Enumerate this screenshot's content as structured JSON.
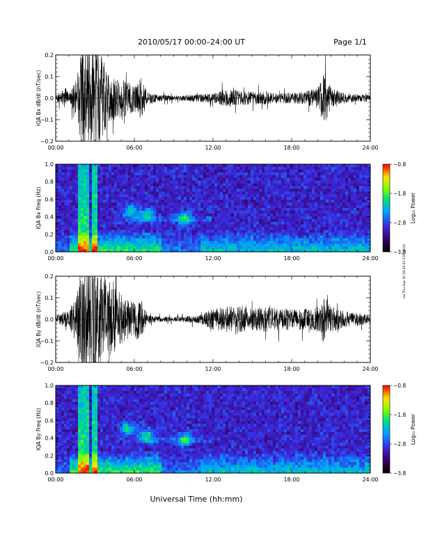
{
  "header": {
    "title": "2010/05/17  00:00–24:00 UT",
    "page": "Page 1/1"
  },
  "side_note": "zal Thu Sep 30 09:45:42 CDT 2010",
  "xlabel": "Universal Time (hh:mm)",
  "chart_data": [
    {
      "type": "line",
      "ylabel": "IQA Bx dB/dt (nT/sec)",
      "xticks": [
        "00:00",
        "06:00",
        "12:00",
        "18:00",
        "24:00"
      ],
      "yticks": [
        "0.2",
        "0.1",
        "0.0",
        "−0.1",
        "−0.2"
      ],
      "ylim": [
        -0.2,
        0.2
      ],
      "xlim": [
        0,
        24
      ],
      "series": [
        {
          "envelope_hours": [
            0,
            0.8,
            1.0,
            1.3,
            1.6,
            2.0,
            2.5,
            3.0,
            3.5,
            4.0,
            4.5,
            5.0,
            5.5,
            6.0,
            6.5,
            7.0,
            8.0,
            9.0,
            10.0,
            11.0,
            12.0,
            13.0,
            14.0,
            15.0,
            16.0,
            17.0,
            18.0,
            19.0,
            20.0,
            20.5,
            21.0,
            22.0,
            23.0,
            24.0
          ],
          "amplitude": [
            0.012,
            0.05,
            0.02,
            0.05,
            0.1,
            0.25,
            0.25,
            0.25,
            0.2,
            0.12,
            0.1,
            0.09,
            0.08,
            0.06,
            0.1,
            0.03,
            0.015,
            0.012,
            0.015,
            0.02,
            0.02,
            0.04,
            0.035,
            0.03,
            0.03,
            0.025,
            0.025,
            0.03,
            0.05,
            0.12,
            0.05,
            0.025,
            0.018,
            0.015
          ]
        }
      ]
    },
    {
      "type": "heatmap",
      "ylabel": "IQA Bx Freq (Hz)",
      "xticks": [
        "00:00",
        "06:00",
        "12:00",
        "18:00",
        "24:00"
      ],
      "yticks": [
        "1.0",
        "0.8",
        "0.6",
        "0.4",
        "0.2",
        "0.0"
      ],
      "ylim": [
        0,
        1
      ],
      "xlim": [
        0,
        24
      ],
      "colorbar": {
        "label": "Log₁₀ Power",
        "ticks": [
          "−0.8",
          "−1.8",
          "−2.8",
          "−3.8"
        ],
        "range": [
          -3.8,
          -0.8
        ]
      },
      "features": {
        "broadband_hours": [
          2.0,
          2.3,
          2.9
        ],
        "pulsation_bands": [
          {
            "hour": 5.7,
            "freq": 0.45
          },
          {
            "hour": 7.0,
            "freq": 0.42
          },
          {
            "hour": 9.8,
            "freq": 0.38
          }
        ]
      }
    },
    {
      "type": "line",
      "ylabel": "IQA By dB/dt (nT/sec)",
      "xticks": [
        "00:00",
        "06:00",
        "12:00",
        "18:00",
        "24:00"
      ],
      "yticks": [
        "0.2",
        "0.1",
        "0.0",
        "−0.1",
        "−0.2"
      ],
      "ylim": [
        -0.2,
        0.2
      ],
      "xlim": [
        0,
        24
      ],
      "series": [
        {
          "envelope_hours": [
            0,
            0.8,
            1.0,
            1.3,
            1.6,
            2.0,
            2.5,
            3.0,
            3.5,
            4.0,
            4.5,
            5.0,
            5.5,
            6.0,
            6.5,
            7.0,
            8.0,
            9.0,
            10.0,
            11.0,
            12.0,
            13.0,
            14.0,
            15.0,
            16.0,
            17.0,
            18.0,
            19.0,
            20.0,
            20.5,
            21.0,
            22.0,
            23.0,
            24.0
          ],
          "amplitude": [
            0.015,
            0.04,
            0.03,
            0.08,
            0.12,
            0.25,
            0.25,
            0.25,
            0.22,
            0.18,
            0.15,
            0.12,
            0.1,
            0.09,
            0.1,
            0.02,
            0.012,
            0.012,
            0.015,
            0.02,
            0.05,
            0.06,
            0.06,
            0.05,
            0.06,
            0.05,
            0.05,
            0.05,
            0.06,
            0.12,
            0.06,
            0.04,
            0.03,
            0.02
          ]
        }
      ]
    },
    {
      "type": "heatmap",
      "ylabel": "IQA By Freq (Hz)",
      "xticks": [
        "00:00",
        "06:00",
        "12:00",
        "18:00",
        "24:00"
      ],
      "yticks": [
        "1.0",
        "0.8",
        "0.6",
        "0.4",
        "0.2",
        "0.0"
      ],
      "ylim": [
        0,
        1
      ],
      "xlim": [
        0,
        24
      ],
      "colorbar": {
        "label": "Log₁₀ Power",
        "ticks": [
          "−0.8",
          "−1.8",
          "−2.8",
          "−3.8"
        ],
        "range": [
          -3.8,
          -0.8
        ]
      },
      "features": {
        "broadband_hours": [
          2.0,
          2.3,
          2.9
        ],
        "pulsation_bands": [
          {
            "hour": 5.5,
            "freq": 0.5
          },
          {
            "hour": 7.0,
            "freq": 0.42
          },
          {
            "hour": 9.8,
            "freq": 0.38
          }
        ]
      }
    }
  ],
  "colors": {
    "frame": "#000000",
    "background": "#ffffff",
    "heat_low": "#1a0033",
    "heat_mid": "#3050e0",
    "heat_high": "#ff1010"
  }
}
